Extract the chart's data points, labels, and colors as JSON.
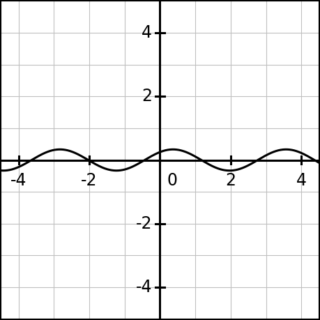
{
  "xlim_display": [
    -4.5,
    4.5
  ],
  "ylim_display": [
    -5.0,
    5.0
  ],
  "xticks": [
    -4,
    -2,
    0,
    2,
    4
  ],
  "yticks": [
    -4,
    -2,
    2,
    4
  ],
  "amplitude": 0.333,
  "omega": 1.9635,
  "phase": 0.8481,
  "grid_color": "#c0c0c0",
  "axis_color": "#000000",
  "curve_color": "#000000",
  "curve_linewidth": 2.2,
  "axis_linewidth": 2.2,
  "background_color": "#ffffff",
  "tick_fontsize": 17,
  "border_color": "#000000",
  "border_linewidth": 1.5
}
